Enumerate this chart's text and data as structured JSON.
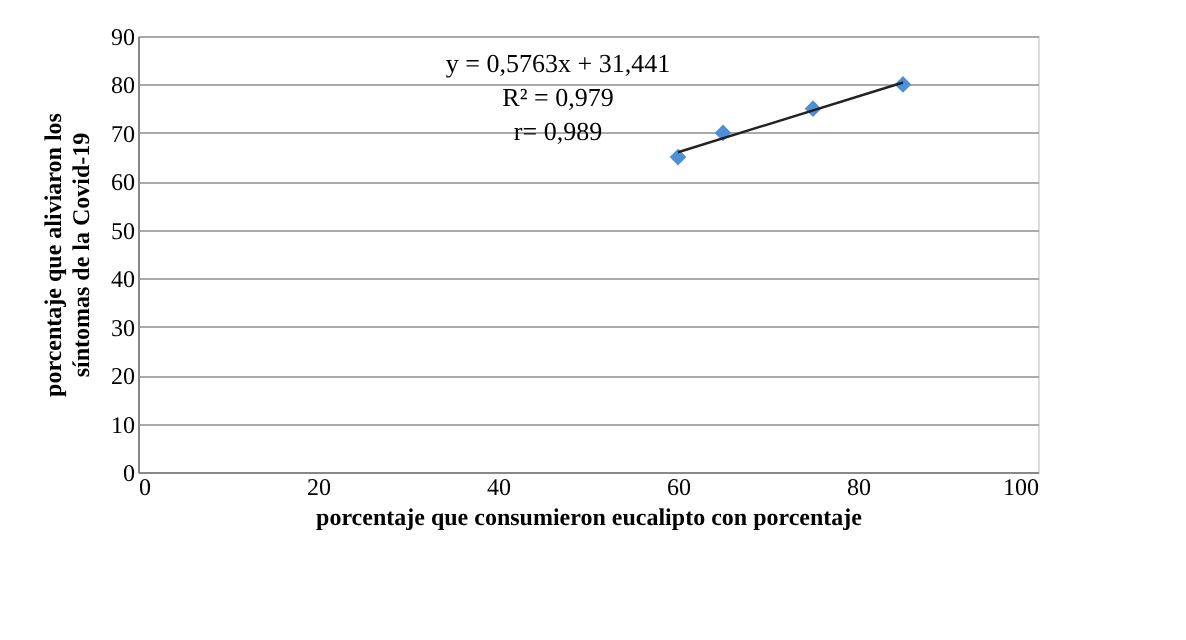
{
  "chart_data": {
    "type": "scatter",
    "xlabel": "porcentaje  que  consumieron  eucalipto  con porcentaje",
    "ylabel": "porcentaje  que  aliviaron  los\nsíntomas de la Covid-19",
    "x": [
      60,
      65,
      75,
      85
    ],
    "series": [
      {
        "color": "#4f8fd6",
        "values": [
          65,
          70,
          75,
          80
        ],
        "marker": "diamond"
      },
      {
        "type": "line",
        "color": "#222222",
        "x": [
          60,
          85
        ],
        "values": [
          66.0,
          80.4
        ],
        "marker": "none",
        "line_style": "solid"
      }
    ],
    "annotations": [
      "y = 0,5763x   + 31,441",
      "R² = 0,979",
      "r= 0,989"
    ],
    "xlim": [
      0,
      100
    ],
    "xticks": [
      0,
      20,
      40,
      60,
      80,
      100
    ],
    "ylim": [
      0,
      90
    ],
    "yticks": [
      0,
      10,
      20,
      30,
      40,
      50,
      60,
      70,
      80,
      90
    ],
    "grid": "y"
  }
}
